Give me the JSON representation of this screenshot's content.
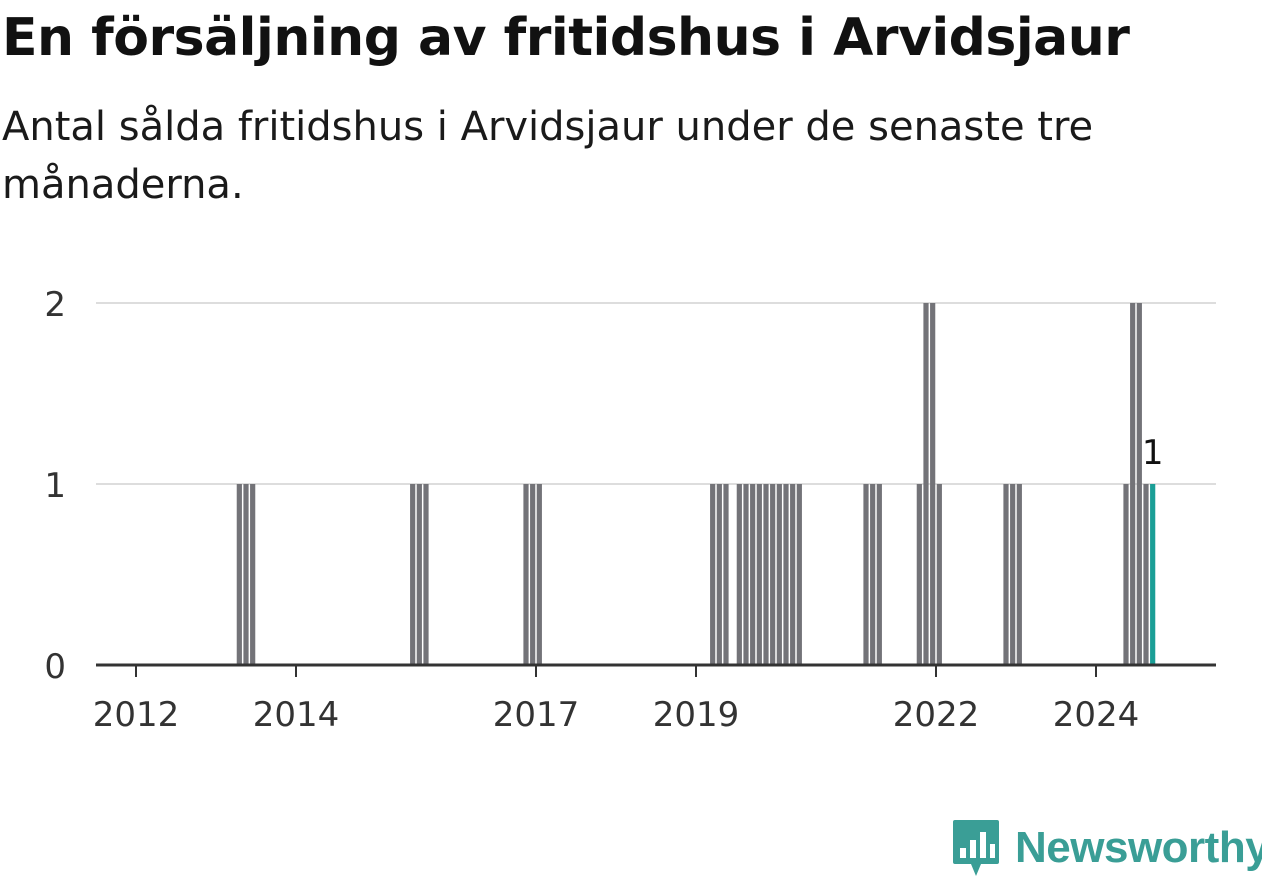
{
  "title": "En försäljning av fritidshus i Arvidsjaur",
  "subtitle": "Antal sålda fritidshus i Arvidsjaur under de senaste tre månaderna.",
  "brand": "Newsworthy",
  "colors": {
    "bar": "#737378",
    "highlight": "#1a9e96",
    "grid": "#dddddd",
    "axis": "#333333"
  },
  "chart_data": {
    "type": "bar",
    "x_tick_labels": [
      "2012",
      "2014",
      "2017",
      "2019",
      "2022",
      "2024"
    ],
    "x_tick_dates": [
      "2012-01",
      "2014-01",
      "2017-01",
      "2019-01",
      "2022-01",
      "2024-01"
    ],
    "y_ticks": [
      0,
      1,
      2
    ],
    "ylim": [
      0,
      2
    ],
    "xlim": [
      "2011-07",
      "2025-07"
    ],
    "grid": true,
    "annotation": {
      "month": "2024-09",
      "text": "1"
    },
    "highlight_month": "2024-09",
    "months": [
      "2013-04",
      "2013-05",
      "2013-06",
      "2015-06",
      "2015-07",
      "2015-08",
      "2016-11",
      "2016-12",
      "2017-01",
      "2019-03",
      "2019-04",
      "2019-05",
      "2019-06",
      "2019-07",
      "2019-08",
      "2019-09",
      "2019-10",
      "2019-11",
      "2019-12",
      "2020-01",
      "2020-02",
      "2020-03",
      "2020-04",
      "2021-02",
      "2021-03",
      "2021-04",
      "2021-10",
      "2021-11",
      "2021-12",
      "2022-01",
      "2022-11",
      "2022-12",
      "2023-01",
      "2024-05",
      "2024-06",
      "2024-07",
      "2024-08",
      "2024-09"
    ],
    "values": [
      1,
      1,
      1,
      1,
      1,
      1,
      1,
      1,
      1,
      1,
      1,
      1,
      0,
      1,
      1,
      1,
      1,
      1,
      1,
      1,
      1,
      1,
      1,
      1,
      1,
      1,
      1,
      2,
      2,
      1,
      1,
      1,
      1,
      1,
      2,
      2,
      1,
      1
    ]
  }
}
